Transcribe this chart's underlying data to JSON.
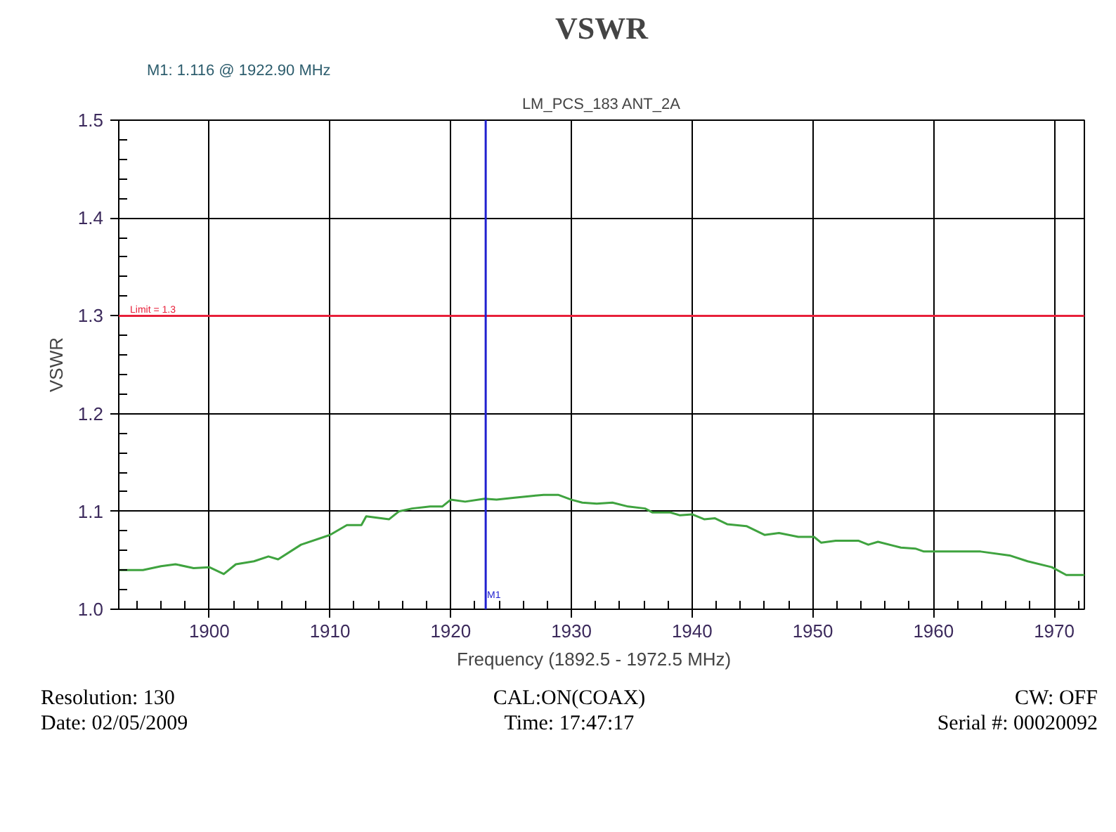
{
  "chart_data": {
    "type": "line",
    "title": "VSWR",
    "subtitle": "LM_PCS_183 ANT_2A",
    "xlabel": "Frequency  (1892.5  - 1972.5  MHz)",
    "ylabel": "VSWR",
    "x": [
      1892.5,
      1894.5,
      1896.0,
      1897.2,
      1898.7,
      1900.0,
      1901.2,
      1902.2,
      1903.7,
      1904.9,
      1905.7,
      1907.6,
      1910.0,
      1911.4,
      1912.6,
      1913.0,
      1914.9,
      1915.7,
      1916.8,
      1918.3,
      1919.3,
      1920.0,
      1921.2,
      1922.8,
      1923.8,
      1925.3,
      1926.9,
      1927.7,
      1928.9,
      1930.0,
      1930.9,
      1932.1,
      1933.4,
      1934.7,
      1936.1,
      1936.7,
      1938.2,
      1939.0,
      1940.0,
      1941.0,
      1941.9,
      1942.9,
      1944.5,
      1946.0,
      1947.2,
      1948.8,
      1950.1,
      1950.7,
      1951.9,
      1953.8,
      1954.6,
      1955.4,
      1957.3,
      1958.5,
      1959.2,
      1960.0,
      1963.9,
      1966.3,
      1967.8,
      1969.8,
      1971.0,
      1972.5
    ],
    "series": [
      {
        "color": "#3fa33f",
        "values": [
          1.04,
          1.04,
          1.044,
          1.046,
          1.042,
          1.043,
          1.036,
          1.046,
          1.049,
          1.054,
          1.051,
          1.066,
          1.076,
          1.086,
          1.086,
          1.095,
          1.092,
          1.1,
          1.103,
          1.105,
          1.105,
          1.112,
          1.11,
          1.113,
          1.112,
          1.114,
          1.116,
          1.117,
          1.117,
          1.112,
          1.109,
          1.108,
          1.109,
          1.105,
          1.103,
          1.099,
          1.099,
          1.096,
          1.097,
          1.092,
          1.093,
          1.087,
          1.085,
          1.076,
          1.078,
          1.074,
          1.074,
          1.068,
          1.07,
          1.07,
          1.066,
          1.069,
          1.063,
          1.062,
          1.059,
          1.059,
          1.059,
          1.055,
          1.049,
          1.043,
          1.035,
          1.035
        ]
      }
    ],
    "xlim": [
      1892.5,
      1972.5
    ],
    "xticks": [
      1900,
      1910,
      1920,
      1930,
      1940,
      1950,
      1960,
      1970
    ],
    "ylim": [
      1.0,
      1.5
    ],
    "yticks": [
      {
        "value": 1.0,
        "label": "1.0"
      },
      1.1,
      1.2,
      1.3,
      1.4,
      1.5
    ],
    "grid": true,
    "line_style": "solid",
    "marker": "none",
    "ref_lines": [
      {
        "axis": "y",
        "value": 1.3,
        "label": "Limit = 1.3",
        "color": "#e8203a"
      },
      {
        "axis": "x",
        "value": 1922.9,
        "label": "M1",
        "color": "#2020d0"
      }
    ],
    "annotations": [
      "M1: 1.116  @ 1922.90 MHz",
      "Resolution:  130",
      "CAL:ON(COAX)",
      "CW: OFF",
      "Date: 02/05/2009",
      "Time: 17:47:17",
      "Serial #: 00020092"
    ]
  }
}
